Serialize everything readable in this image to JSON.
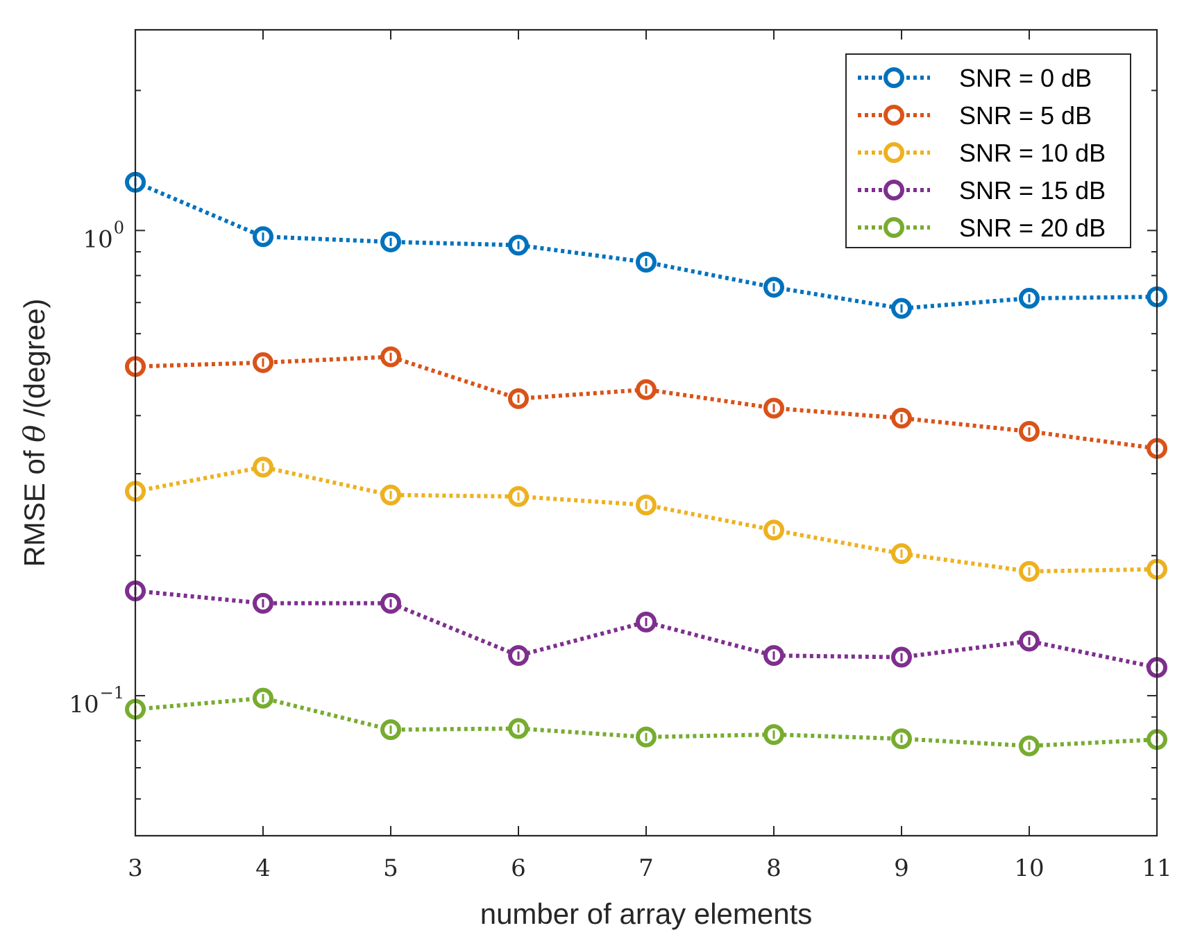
{
  "chart_data": {
    "type": "line",
    "title": "",
    "xlabel": "number of array elements",
    "ylabel_prefix": "RMSE of ",
    "ylabel_symbol": "θ",
    "ylabel_suffix": " /(degree)",
    "x": [
      3,
      4,
      5,
      6,
      7,
      8,
      9,
      10,
      11
    ],
    "xlim": [
      3,
      11
    ],
    "ylim": [
      0.05,
      2.7
    ],
    "yscale": "log",
    "x_tick_labels": [
      "3",
      "4",
      "5",
      "6",
      "7",
      "8",
      "9",
      "10",
      "11"
    ],
    "y_major_ticks": [
      {
        "value": 1.0,
        "base": "10",
        "exp": "0"
      },
      {
        "value": 0.1,
        "base": "10",
        "exp": "−1"
      }
    ],
    "legend_position": "top-right",
    "marker": "circle",
    "linestyle": "dotted",
    "series": [
      {
        "name": "SNR = 0 dB",
        "color": "#0072BD",
        "values": [
          1.27,
          0.97,
          0.945,
          0.93,
          0.855,
          0.755,
          0.68,
          0.715,
          0.72
        ]
      },
      {
        "name": "SNR = 5 dB",
        "color": "#D95319",
        "values": [
          0.51,
          0.52,
          0.535,
          0.435,
          0.455,
          0.415,
          0.395,
          0.37,
          0.34
        ]
      },
      {
        "name": "SNR = 10 dB",
        "color": "#EDB120",
        "values": [
          0.275,
          0.31,
          0.27,
          0.268,
          0.257,
          0.227,
          0.202,
          0.185,
          0.187
        ]
      },
      {
        "name": "SNR = 15 dB",
        "color": "#7E2F8E",
        "values": [
          0.168,
          0.158,
          0.158,
          0.122,
          0.144,
          0.122,
          0.121,
          0.131,
          0.115
        ]
      },
      {
        "name": "SNR = 20 dB",
        "color": "#77AC30",
        "values": [
          0.0935,
          0.0988,
          0.0845,
          0.085,
          0.0815,
          0.0825,
          0.0808,
          0.078,
          0.0805
        ]
      }
    ]
  }
}
